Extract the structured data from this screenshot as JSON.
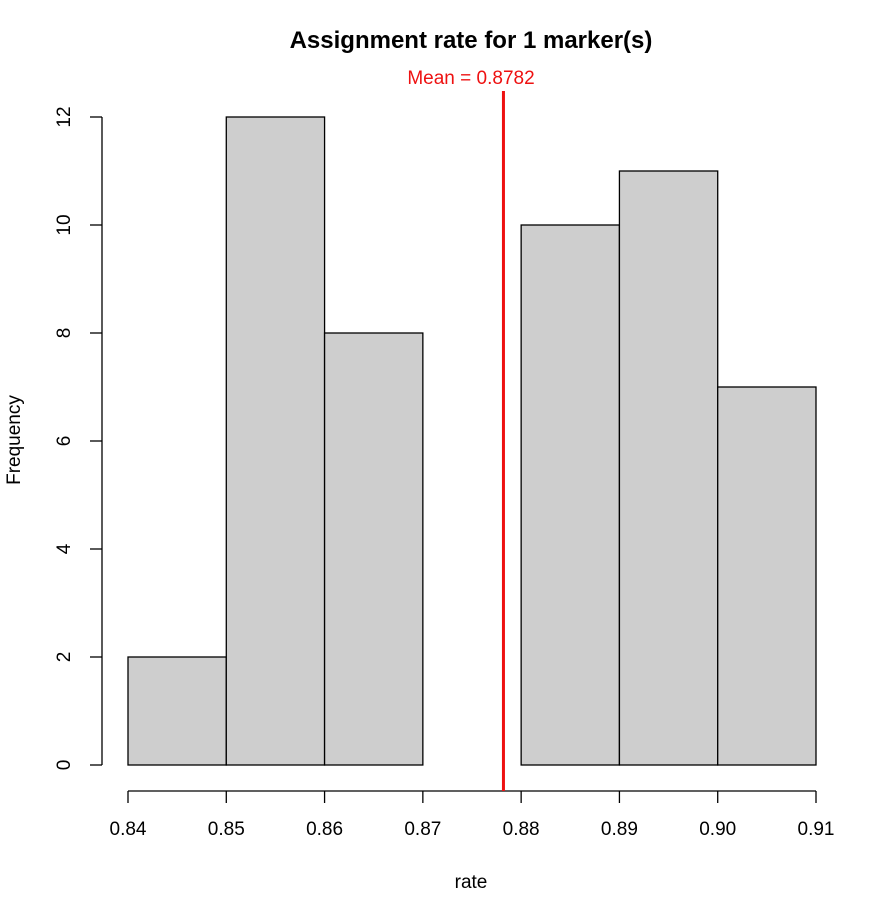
{
  "chart_data": {
    "type": "bar",
    "title": "Assignment rate for 1 marker(s)",
    "xlabel": "rate",
    "ylabel": "Frequency",
    "bins": [
      {
        "start": 0.84,
        "end": 0.85,
        "count": 2
      },
      {
        "start": 0.85,
        "end": 0.86,
        "count": 12
      },
      {
        "start": 0.86,
        "end": 0.87,
        "count": 8
      },
      {
        "start": 0.87,
        "end": 0.88,
        "count": 0
      },
      {
        "start": 0.88,
        "end": 0.89,
        "count": 10
      },
      {
        "start": 0.89,
        "end": 0.9,
        "count": 11
      },
      {
        "start": 0.9,
        "end": 0.91,
        "count": 7
      }
    ],
    "xlim": [
      0.84,
      0.91
    ],
    "ylim": [
      0,
      12
    ],
    "x_ticks": [
      "0.84",
      "0.85",
      "0.86",
      "0.87",
      "0.88",
      "0.89",
      "0.90",
      "0.91"
    ],
    "y_ticks": [
      "0",
      "2",
      "4",
      "6",
      "8",
      "10",
      "12"
    ],
    "grid": false,
    "mean_line": {
      "value": 0.8782,
      "label": "Mean = 0.8782"
    },
    "colors": {
      "bar_fill": "#cecece",
      "bar_stroke": "#000000",
      "mean_line": "#ee1111"
    }
  }
}
